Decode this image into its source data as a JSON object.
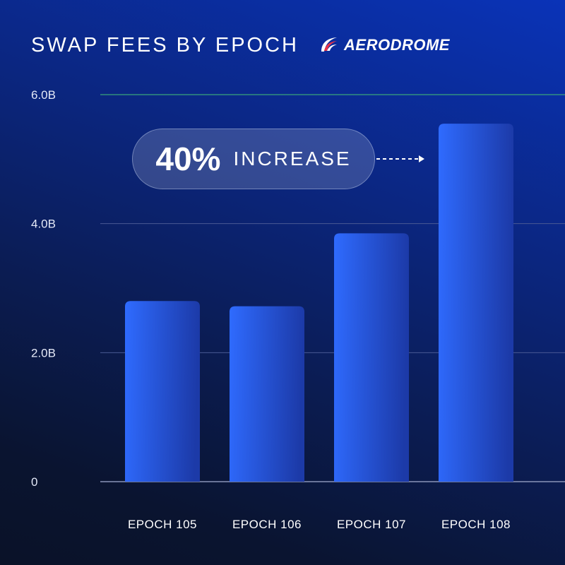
{
  "header": {
    "title": "SWAP FEES BY EPOCH",
    "logo_text": "AERODROME"
  },
  "callout": {
    "value": "40%",
    "label": "INCREASE"
  },
  "colors": {
    "bar_light": "#2f6bff",
    "bar_dark": "#1c3aa8",
    "top_gridline": "#3aa57a",
    "gridline": "#4a5a94",
    "baseline": "#8a94b8"
  },
  "chart_data": {
    "type": "bar",
    "title": "SWAP FEES BY EPOCH",
    "categories": [
      "EPOCH 105",
      "EPOCH 106",
      "EPOCH 107",
      "EPOCH 108"
    ],
    "values": [
      2.8,
      2.72,
      3.85,
      5.55
    ],
    "ylim": [
      0,
      6.0
    ],
    "yticks": [
      0,
      2.0,
      4.0,
      6.0
    ],
    "ytick_labels": [
      "0",
      "2.0B",
      "4.0B",
      "6.0B"
    ],
    "grid": true,
    "legend": "none"
  }
}
